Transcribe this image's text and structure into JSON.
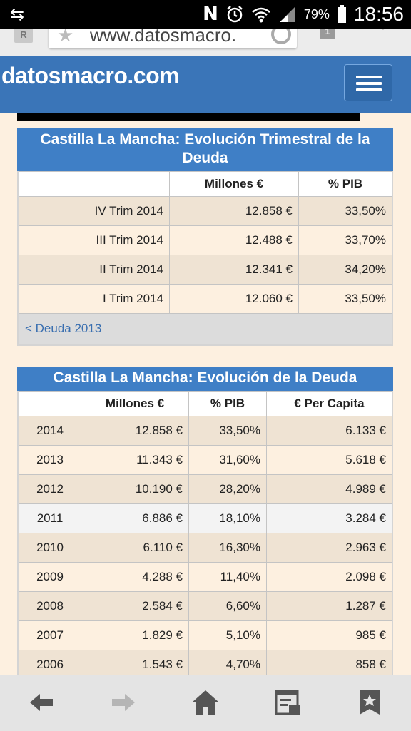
{
  "status_bar": {
    "battery": "79%",
    "time": "18:56"
  },
  "browser": {
    "url": "www.datosmacro.",
    "tab_count": "1"
  },
  "site": {
    "brand": "datosmacro.com"
  },
  "quarterly": {
    "title": "Castilla La Mancha: Evolución Trimestral de la Deuda",
    "headers": [
      "",
      "Millones €",
      "% PIB"
    ],
    "rows": [
      [
        "IV Trim 2014",
        "12.858 €",
        "33,50%"
      ],
      [
        "III Trim 2014",
        "12.488 €",
        "33,70%"
      ],
      [
        "II Trim 2014",
        "12.341 €",
        "34,20%"
      ],
      [
        "I Trim 2014",
        "12.060 €",
        "33,50%"
      ]
    ],
    "footer_link": "< Deuda 2013"
  },
  "annual": {
    "title": "Castilla La Mancha: Evolución de la Deuda",
    "headers": [
      "",
      "Millones €",
      "% PIB",
      "€ Per Capita"
    ],
    "rows": [
      [
        "2014",
        "12.858 €",
        "33,50%",
        "6.133 €"
      ],
      [
        "2013",
        "11.343 €",
        "31,60%",
        "5.618 €"
      ],
      [
        "2012",
        "10.190 €",
        "28,20%",
        "4.989 €"
      ],
      [
        "2011",
        "6.886 €",
        "18,10%",
        "3.284 €"
      ],
      [
        "2010",
        "6.110 €",
        "16,30%",
        "2.963 €"
      ],
      [
        "2009",
        "4.288 €",
        "11,40%",
        "2.098 €"
      ],
      [
        "2008",
        "2.584 €",
        "6,60%",
        "1.287 €"
      ],
      [
        "2007",
        "1.829 €",
        "5,10%",
        "985 €"
      ],
      [
        "2006",
        "1.543 €",
        "4,70%",
        "858 €"
      ]
    ]
  },
  "bottom_nav": {
    "icons": [
      "back-icon",
      "forward-icon",
      "home-icon",
      "reading-list-icon",
      "bookmarks-icon"
    ]
  }
}
